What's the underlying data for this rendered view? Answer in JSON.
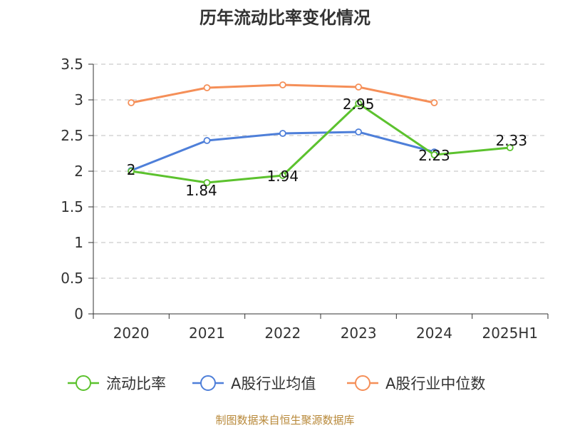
{
  "chart_data": {
    "type": "line",
    "title": "历年流动比率变化情况",
    "categories": [
      "2020",
      "2021",
      "2022",
      "2023",
      "2024",
      "2025H1"
    ],
    "ylim": [
      0,
      3.5
    ],
    "yticks": [
      "0",
      "0.5",
      "1",
      "1.5",
      "2",
      "2.5",
      "3",
      "3.5"
    ],
    "grid": true,
    "legend_position": "bottom",
    "series": [
      {
        "name": "流动比率",
        "color": "#5cc22e",
        "values": [
          2,
          1.84,
          1.94,
          2.95,
          2.23,
          2.33
        ],
        "labels": [
          "2",
          "1.84",
          "1.94",
          "2.95",
          "2.23",
          "2.33"
        ]
      },
      {
        "name": "A股行业均值",
        "color": "#4e7fd9",
        "values": [
          2.01,
          2.43,
          2.53,
          2.55,
          2.27,
          null
        ]
      },
      {
        "name": "A股行业中位数",
        "color": "#f58f58",
        "values": [
          2.96,
          3.17,
          3.21,
          3.18,
          2.96,
          null
        ]
      }
    ]
  },
  "source_text": "制图数据来自恒生聚源数据库"
}
